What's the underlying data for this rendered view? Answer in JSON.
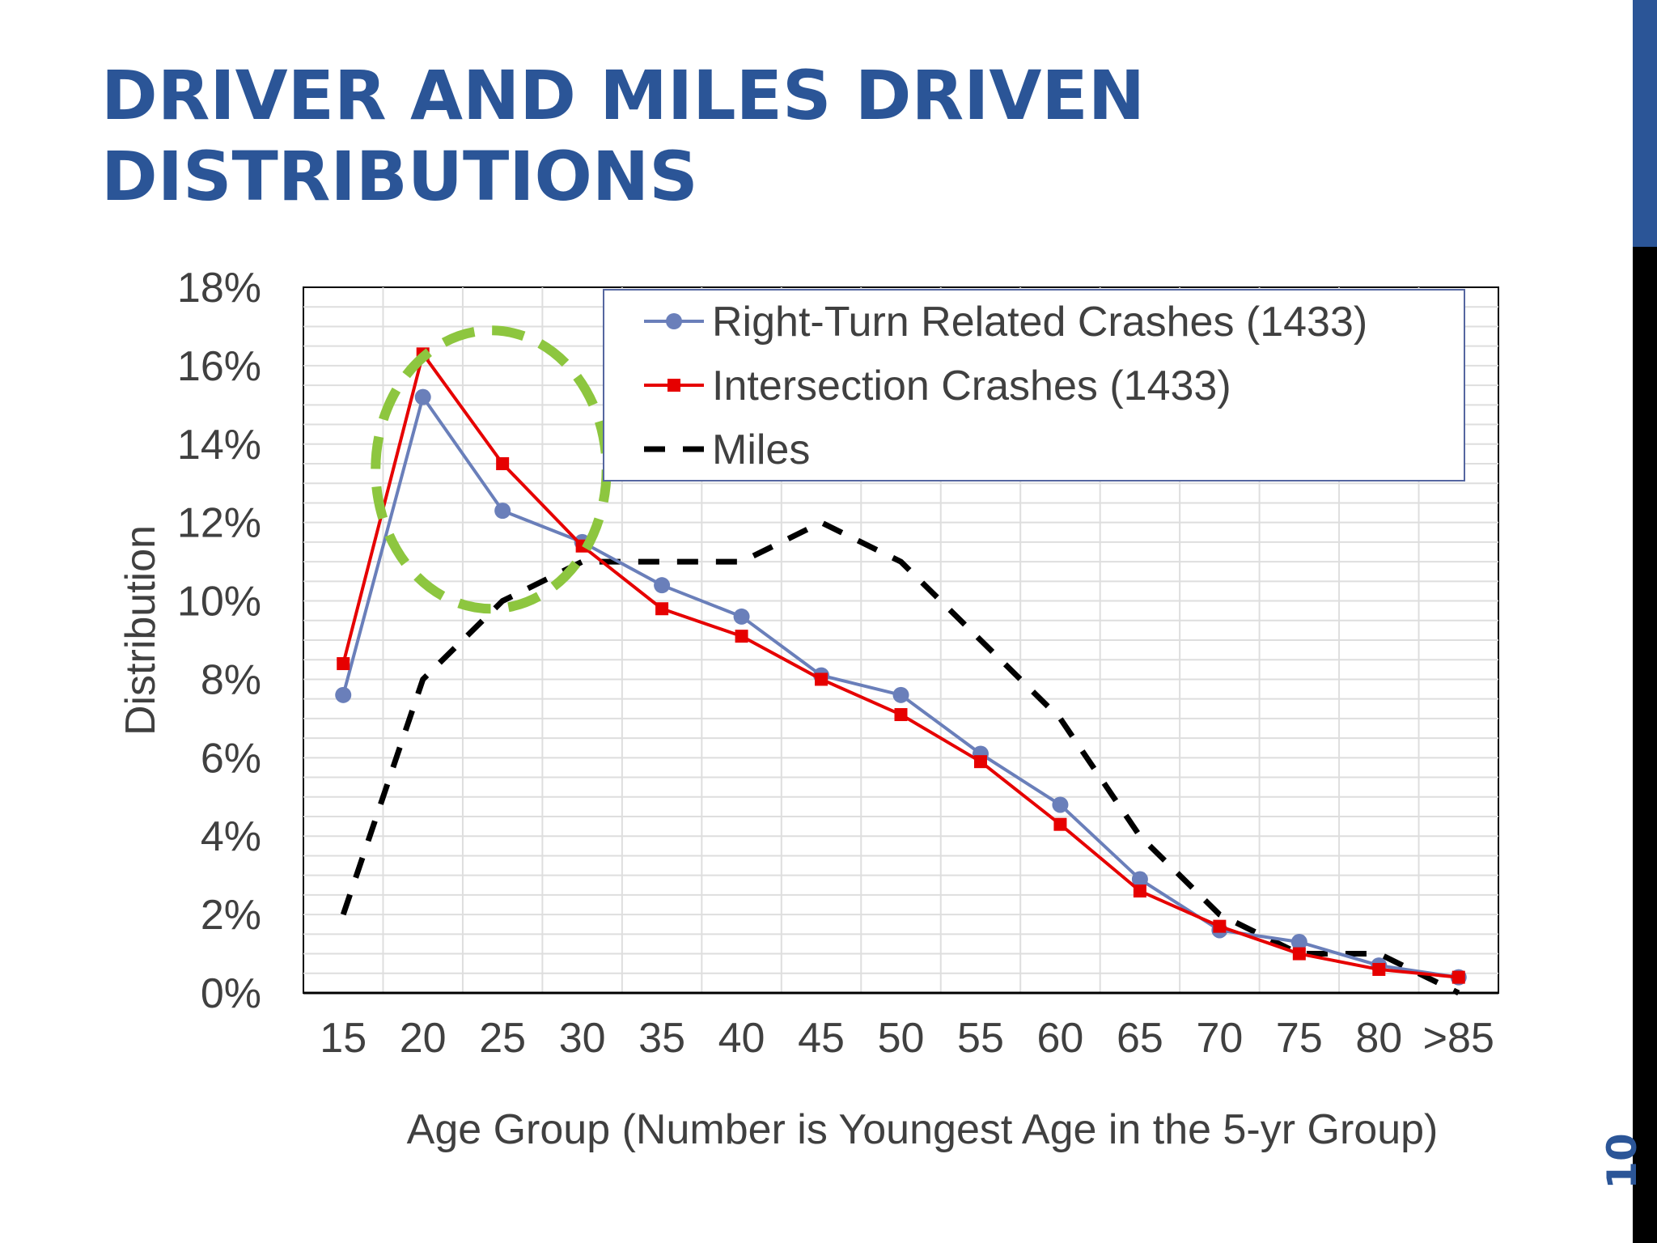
{
  "slide": {
    "title_line1": "DRIVER AND MILES DRIVEN",
    "title_line2": "DISTRIBUTIONS",
    "page_number": "10"
  },
  "colors": {
    "title": "#2b5597",
    "right_turn": "#6a7fba",
    "intersection": "#e60000",
    "miles": "#000000",
    "highlight_circle": "#8dc63f"
  },
  "chart_data": {
    "type": "line",
    "title": "",
    "xlabel": "Age Group (Number is Youngest Age in the 5-yr Group)",
    "ylabel": "Distribution",
    "categories": [
      "15",
      "20",
      "25",
      "30",
      "35",
      "40",
      "45",
      "50",
      "55",
      "60",
      "65",
      "70",
      "75",
      "80",
      ">85"
    ],
    "ylim": [
      0,
      18
    ],
    "yticks": [
      "0%",
      "2%",
      "4%",
      "6%",
      "8%",
      "10%",
      "12%",
      "14%",
      "16%",
      "18%"
    ],
    "grid": true,
    "legend_position": "top-right",
    "series": [
      {
        "name": "Right-Turn Related Crashes (1433)",
        "style": "solid line, circle markers",
        "values": [
          7.6,
          15.2,
          12.3,
          11.5,
          10.4,
          9.6,
          8.1,
          7.6,
          6.1,
          4.8,
          2.9,
          1.6,
          1.3,
          0.7,
          0.4
        ]
      },
      {
        "name": "Intersection Crashes (1433)",
        "style": "solid line, square markers",
        "values": [
          8.4,
          16.3,
          13.5,
          11.4,
          9.8,
          9.1,
          8.0,
          7.1,
          5.9,
          4.3,
          2.6,
          1.7,
          1.0,
          0.6,
          0.4
        ]
      },
      {
        "name": "Miles",
        "style": "dashed line, no markers",
        "values": [
          2,
          8,
          10,
          11,
          11,
          11,
          12,
          11,
          9,
          7,
          4,
          2,
          1,
          1,
          0
        ]
      }
    ],
    "annotations": [
      {
        "type": "dashed circle",
        "color": "green",
        "around_categories": [
          "15",
          "30"
        ],
        "y_range": [
          9.8,
          16.9
        ]
      }
    ]
  }
}
